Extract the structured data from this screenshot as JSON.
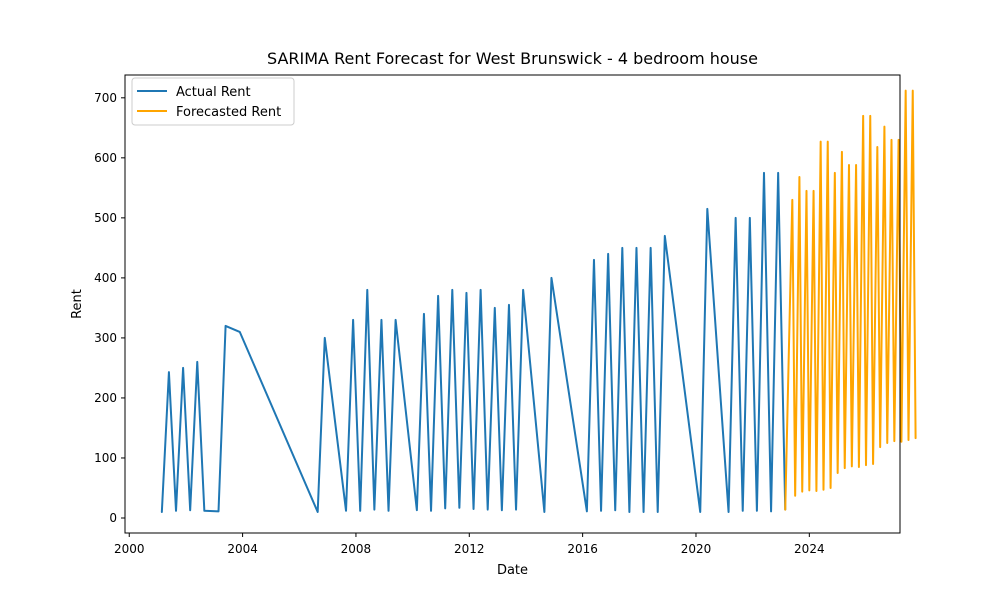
{
  "chart_data": {
    "type": "line",
    "title": "SARIMA Rent Forecast for West Brunswick - 4 bedroom house",
    "xlabel": "Date",
    "ylabel": "Rent",
    "xlim": [
      1999.85,
      2027.2
    ],
    "ylim": [
      -25,
      738
    ],
    "x_ticks": [
      2000,
      2004,
      2008,
      2012,
      2016,
      2020,
      2024
    ],
    "x_tick_labels": [
      "2000",
      "2004",
      "2008",
      "2012",
      "2016",
      "2020",
      "2024"
    ],
    "y_ticks": [
      0,
      100,
      200,
      300,
      400,
      500,
      600,
      700
    ],
    "y_tick_labels": [
      "0",
      "100",
      "200",
      "300",
      "400",
      "500",
      "600",
      "700"
    ],
    "grid": false,
    "legend_position": "upper left",
    "series": [
      {
        "name": "Actual Rent",
        "color": "#1f77b4",
        "points": [
          [
            2001.15,
            10
          ],
          [
            2001.4,
            243
          ],
          [
            2001.65,
            12
          ],
          [
            2001.9,
            250
          ],
          [
            2002.15,
            13
          ],
          [
            2002.4,
            260
          ],
          [
            2002.65,
            12
          ],
          [
            2003.15,
            11
          ],
          [
            2003.4,
            320
          ],
          [
            2003.9,
            310
          ],
          [
            2006.65,
            10
          ],
          [
            2006.9,
            300
          ],
          [
            2007.65,
            12
          ],
          [
            2007.9,
            330
          ],
          [
            2008.15,
            12
          ],
          [
            2008.4,
            380
          ],
          [
            2008.65,
            14
          ],
          [
            2008.9,
            330
          ],
          [
            2009.15,
            12
          ],
          [
            2009.4,
            330
          ],
          [
            2010.15,
            13
          ],
          [
            2010.4,
            340
          ],
          [
            2010.65,
            12
          ],
          [
            2010.9,
            370
          ],
          [
            2011.15,
            16
          ],
          [
            2011.4,
            380
          ],
          [
            2011.65,
            17
          ],
          [
            2011.9,
            375
          ],
          [
            2012.15,
            15
          ],
          [
            2012.4,
            380
          ],
          [
            2012.65,
            14
          ],
          [
            2012.9,
            350
          ],
          [
            2013.15,
            13
          ],
          [
            2013.4,
            355
          ],
          [
            2013.65,
            14
          ],
          [
            2013.9,
            380
          ],
          [
            2014.65,
            10
          ],
          [
            2014.9,
            400
          ],
          [
            2016.15,
            11
          ],
          [
            2016.4,
            430
          ],
          [
            2016.65,
            12
          ],
          [
            2016.9,
            440
          ],
          [
            2017.15,
            13
          ],
          [
            2017.4,
            450
          ],
          [
            2017.65,
            10
          ],
          [
            2017.9,
            450
          ],
          [
            2018.15,
            10
          ],
          [
            2018.4,
            450
          ],
          [
            2018.65,
            10
          ],
          [
            2018.9,
            470
          ],
          [
            2020.15,
            10
          ],
          [
            2020.4,
            515
          ],
          [
            2021.15,
            10
          ],
          [
            2021.4,
            500
          ],
          [
            2021.65,
            12
          ],
          [
            2021.9,
            500
          ],
          [
            2022.15,
            12
          ],
          [
            2022.4,
            575
          ],
          [
            2022.65,
            11
          ],
          [
            2022.9,
            575
          ],
          [
            2023.15,
            14
          ]
        ]
      },
      {
        "name": "Forecasted Rent",
        "color": "#ffa500",
        "points": [
          [
            2023.15,
            14
          ],
          [
            2023.4,
            530
          ],
          [
            2023.5,
            37
          ],
          [
            2023.65,
            568
          ],
          [
            2023.75,
            44
          ],
          [
            2023.9,
            545
          ],
          [
            2024.0,
            46
          ],
          [
            2024.15,
            545
          ],
          [
            2024.25,
            45
          ],
          [
            2024.4,
            627
          ],
          [
            2024.5,
            47
          ],
          [
            2024.65,
            627
          ],
          [
            2024.75,
            50
          ],
          [
            2024.9,
            575
          ],
          [
            2025.0,
            75
          ],
          [
            2025.15,
            610
          ],
          [
            2025.25,
            83
          ],
          [
            2025.4,
            588
          ],
          [
            2025.5,
            86
          ],
          [
            2025.65,
            588
          ],
          [
            2025.75,
            85
          ],
          [
            2025.9,
            670
          ],
          [
            2026.0,
            88
          ],
          [
            2026.15,
            670
          ],
          [
            2026.25,
            90
          ],
          [
            2026.4,
            618
          ],
          [
            2026.5,
            118
          ],
          [
            2026.65,
            652
          ],
          [
            2026.75,
            125
          ],
          [
            2026.9,
            630
          ],
          [
            2027.0,
            128
          ],
          [
            2027.15,
            630
          ],
          [
            2027.25,
            127
          ],
          [
            2027.4,
            712
          ],
          [
            2027.5,
            130
          ],
          [
            2027.65,
            712
          ],
          [
            2027.75,
            133
          ]
        ]
      }
    ]
  }
}
